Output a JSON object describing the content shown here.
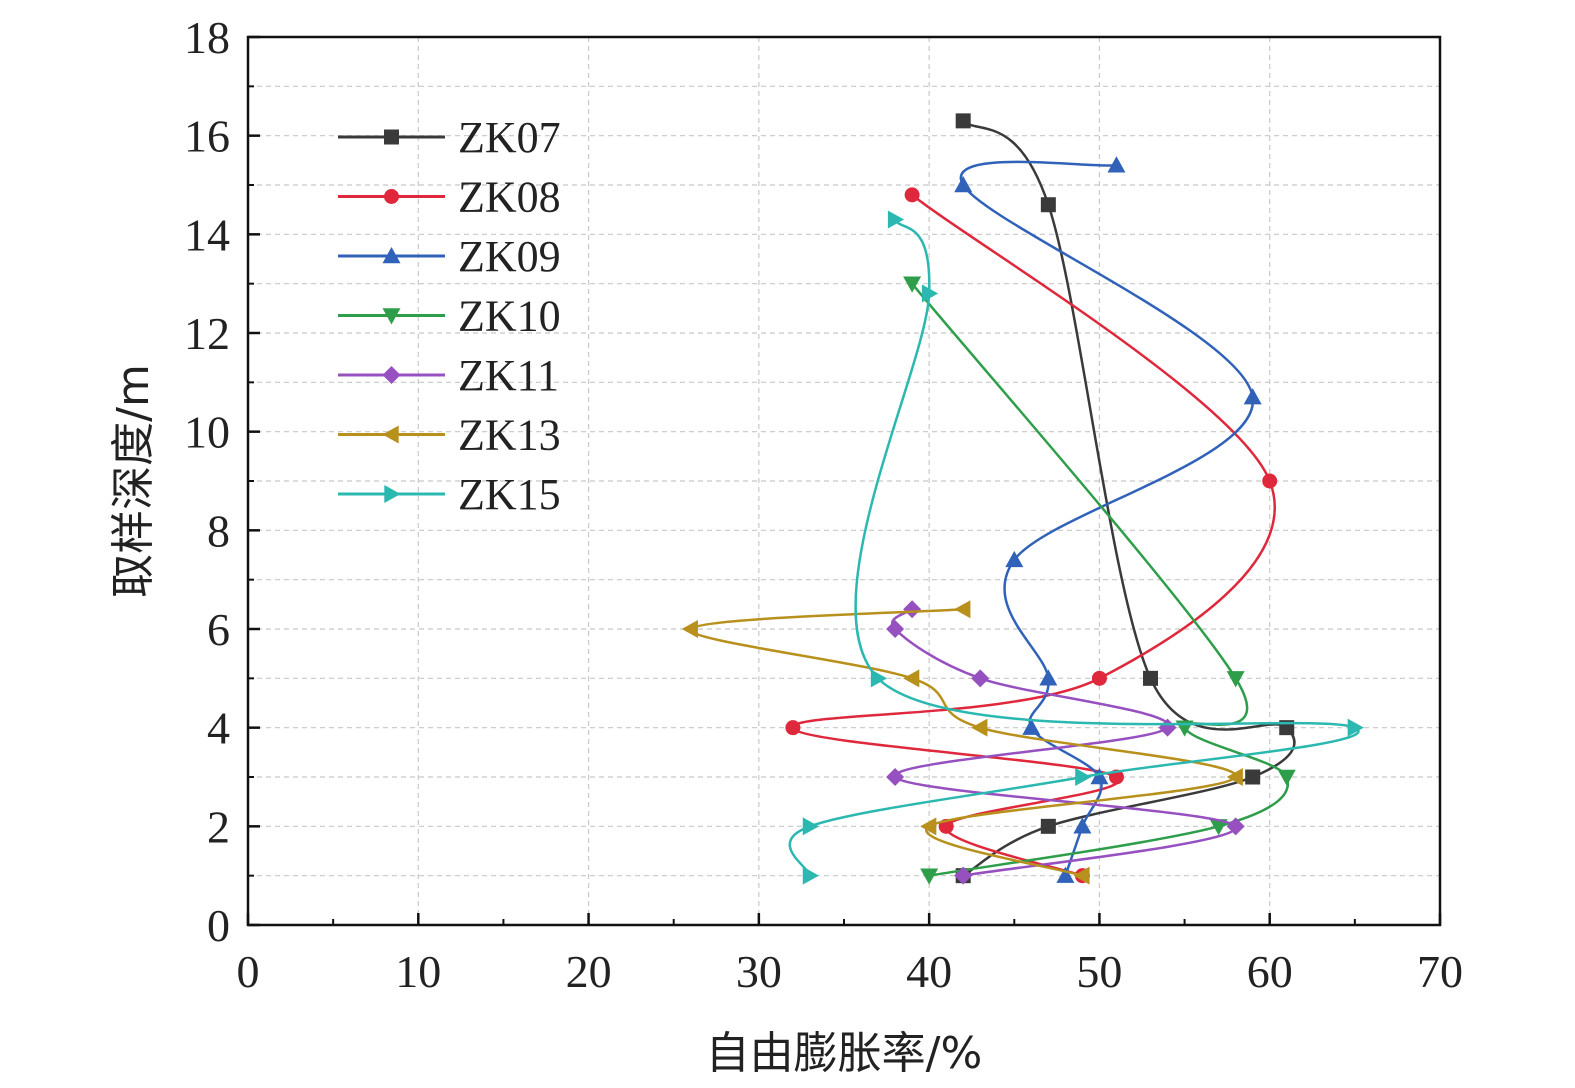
{
  "chart_data": {
    "type": "line",
    "title": "",
    "xlabel": "自由膨胀率/%",
    "ylabel": "取样深度/m",
    "xlim": [
      0,
      70
    ],
    "ylim": [
      0,
      18
    ],
    "x_ticks": [
      "0",
      "10",
      "20",
      "30",
      "40",
      "50",
      "60",
      "70"
    ],
    "y_ticks": [
      "0",
      "2",
      "4",
      "6",
      "8",
      "10",
      "12",
      "14",
      "16",
      "18"
    ],
    "grid": true,
    "legend_position": "top-left",
    "series": [
      {
        "name": "ZK07",
        "color": "#3a3a3a",
        "marker": "square",
        "points": [
          [
            42,
            16.3
          ],
          [
            47,
            14.6
          ],
          [
            53,
            5.0
          ],
          [
            61,
            4.0
          ],
          [
            59,
            3.0
          ],
          [
            47,
            2.0
          ],
          [
            42,
            1.0
          ]
        ]
      },
      {
        "name": "ZK08",
        "color": "#e0283c",
        "marker": "circle",
        "points": [
          [
            39,
            14.8
          ],
          [
            60,
            9.0
          ],
          [
            50,
            5.0
          ],
          [
            32,
            4.0
          ],
          [
            51,
            3.0
          ],
          [
            41,
            2.0
          ],
          [
            49,
            1.0
          ]
        ]
      },
      {
        "name": "ZK09",
        "color": "#2f62b8",
        "marker": "triangle-up",
        "points": [
          [
            51,
            15.4
          ],
          [
            42,
            15.0
          ],
          [
            59,
            10.7
          ],
          [
            45,
            7.4
          ],
          [
            47,
            5.0
          ],
          [
            46,
            4.0
          ],
          [
            50,
            3.0
          ],
          [
            49,
            2.0
          ],
          [
            48,
            1.0
          ]
        ]
      },
      {
        "name": "ZK10",
        "color": "#2e9e4a",
        "marker": "triangle-down",
        "points": [
          [
            39,
            13.0
          ],
          [
            58,
            5.0
          ],
          [
            55,
            4.0
          ],
          [
            61,
            3.0
          ],
          [
            57,
            2.0
          ],
          [
            40,
            1.0
          ]
        ]
      },
      {
        "name": "ZK11",
        "color": "#9650c0",
        "marker": "diamond",
        "points": [
          [
            39,
            6.4
          ],
          [
            38,
            6.0
          ],
          [
            43,
            5.0
          ],
          [
            54,
            4.0
          ],
          [
            38,
            3.0
          ],
          [
            58,
            2.0
          ],
          [
            42,
            1.0
          ]
        ]
      },
      {
        "name": "ZK13",
        "color": "#b8901c",
        "marker": "triangle-left",
        "points": [
          [
            42,
            6.4
          ],
          [
            26,
            6.0
          ],
          [
            39,
            5.0
          ],
          [
            43,
            4.0
          ],
          [
            58,
            3.0
          ],
          [
            40,
            2.0
          ],
          [
            49,
            1.0
          ]
        ]
      },
      {
        "name": "ZK15",
        "color": "#2bb8b0",
        "marker": "triangle-right",
        "points": [
          [
            38,
            14.3
          ],
          [
            40,
            12.8
          ],
          [
            37,
            5.0
          ],
          [
            65,
            4.0
          ],
          [
            49,
            3.0
          ],
          [
            33,
            2.0
          ],
          [
            33,
            1.0
          ]
        ]
      }
    ]
  }
}
